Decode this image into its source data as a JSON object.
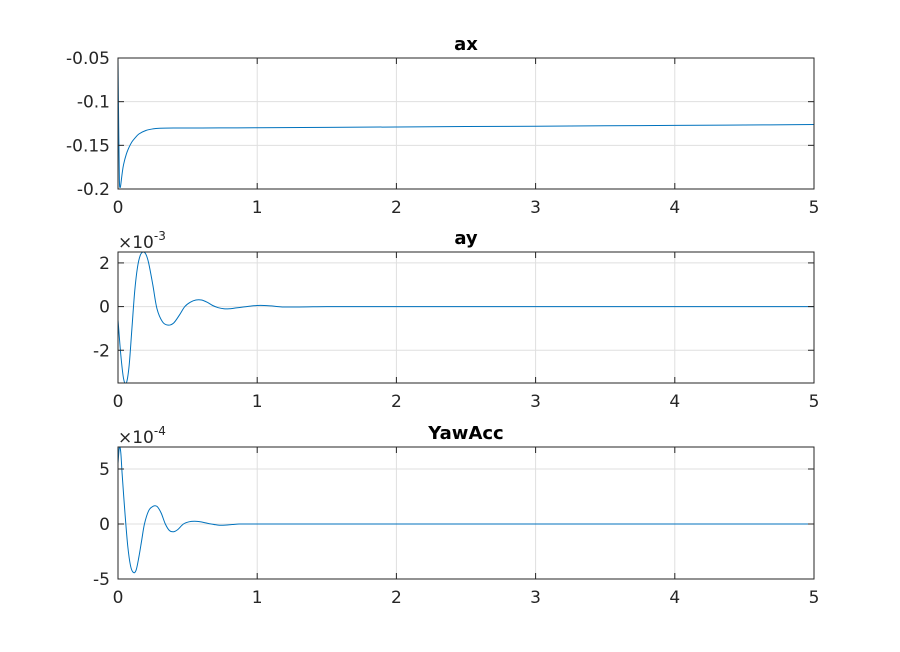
{
  "colors": {
    "line": "#0072BD",
    "grid": "#dfdfdf",
    "axis": "#262626"
  },
  "chart_data": [
    {
      "type": "line",
      "title": "ax",
      "xlim": [
        0,
        5
      ],
      "ylim": [
        -0.2,
        -0.05
      ],
      "xticks": [
        0,
        1,
        2,
        3,
        4,
        5
      ],
      "xtick_labels": [
        "0",
        "1",
        "2",
        "3",
        "4",
        "5"
      ],
      "yticks": [
        -0.2,
        -0.15,
        -0.1,
        -0.05
      ],
      "ytick_labels": [
        "-0.2",
        "-0.15",
        "-0.1",
        "-0.05"
      ],
      "exponent": null,
      "grid": true,
      "series": [
        {
          "x": [
            0,
            0.005,
            0.01,
            0.015,
            0.02,
            0.03,
            0.04,
            0.06,
            0.08,
            0.1,
            0.12,
            0.15,
            0.2,
            0.25,
            0.3,
            0.4,
            0.5,
            0.6,
            0.8,
            1.0,
            1.5,
            2.0,
            2.5,
            3.0,
            3.5,
            4.0,
            4.5,
            5.0
          ],
          "y": [
            -0.05,
            -0.13,
            -0.19,
            -0.198,
            -0.195,
            -0.182,
            -0.172,
            -0.16,
            -0.152,
            -0.146,
            -0.142,
            -0.137,
            -0.133,
            -0.1312,
            -0.1305,
            -0.1302,
            -0.1302,
            -0.1301,
            -0.13,
            -0.1298,
            -0.1294,
            -0.129,
            -0.1285,
            -0.1281,
            -0.1276,
            -0.1272,
            -0.1267,
            -0.1262
          ]
        }
      ]
    },
    {
      "type": "line",
      "title": "ay",
      "xlim": [
        0,
        5
      ],
      "ylim": [
        -3.5,
        2.5
      ],
      "xticks": [
        0,
        1,
        2,
        3,
        4,
        5
      ],
      "xtick_labels": [
        "0",
        "1",
        "2",
        "3",
        "4",
        "5"
      ],
      "yticks": [
        -2,
        0,
        2
      ],
      "ytick_labels": [
        "-2",
        "0",
        "2"
      ],
      "exponent": {
        "base": "×10",
        "power": "-3"
      },
      "grid": true,
      "series": [
        {
          "x": [
            0,
            0.02,
            0.04,
            0.06,
            0.08,
            0.1,
            0.12,
            0.14,
            0.16,
            0.18,
            0.2,
            0.22,
            0.25,
            0.28,
            0.32,
            0.36,
            0.4,
            0.44,
            0.48,
            0.52,
            0.56,
            0.6,
            0.64,
            0.68,
            0.72,
            0.76,
            0.8,
            0.85,
            0.9,
            0.95,
            1.0,
            1.05,
            1.1,
            1.15,
            1.2,
            1.3,
            1.4,
            1.5,
            2.0,
            3.0,
            4.0,
            5.0
          ],
          "y": [
            -0.6,
            -2.2,
            -3.3,
            -3.5,
            -2.7,
            -1.0,
            0.7,
            1.8,
            2.35,
            2.5,
            2.4,
            2.0,
            1.0,
            -0.1,
            -0.7,
            -0.85,
            -0.75,
            -0.4,
            0.0,
            0.2,
            0.3,
            0.3,
            0.2,
            0.05,
            -0.05,
            -0.1,
            -0.1,
            -0.06,
            -0.02,
            0.02,
            0.05,
            0.05,
            0.03,
            0.0,
            -0.02,
            -0.02,
            -0.01,
            0.0,
            0.0,
            0.0,
            0.0,
            0.0
          ]
        }
      ]
    },
    {
      "type": "line",
      "title": "YawAcc",
      "xlim": [
        0,
        5
      ],
      "ylim": [
        -5,
        7
      ],
      "xticks": [
        0,
        1,
        2,
        3,
        4,
        5
      ],
      "xtick_labels": [
        "0",
        "1",
        "2",
        "3",
        "4",
        "5"
      ],
      "yticks": [
        -5,
        0,
        5
      ],
      "ytick_labels": [
        "-5",
        "0",
        "5"
      ],
      "exponent": {
        "base": "×10",
        "power": "-4"
      },
      "grid": true,
      "series": [
        {
          "x": [
            0,
            0.01,
            0.02,
            0.03,
            0.05,
            0.07,
            0.09,
            0.11,
            0.13,
            0.15,
            0.17,
            0.19,
            0.22,
            0.25,
            0.28,
            0.31,
            0.34,
            0.37,
            0.4,
            0.43,
            0.47,
            0.51,
            0.55,
            0.59,
            0.63,
            0.67,
            0.72,
            0.77,
            0.82,
            0.87,
            0.92,
            1.0,
            1.1,
            1.2,
            1.4,
            1.6,
            2.0,
            3.0,
            4.0,
            5.0
          ],
          "y": [
            5.5,
            7.0,
            6.5,
            4.5,
            1.0,
            -2.0,
            -3.8,
            -4.4,
            -4.2,
            -3.0,
            -1.5,
            0.0,
            1.2,
            1.6,
            1.6,
            1.0,
            0.0,
            -0.6,
            -0.7,
            -0.5,
            0.0,
            0.2,
            0.25,
            0.2,
            0.1,
            0.0,
            -0.1,
            -0.1,
            -0.05,
            0.0,
            0.0,
            0.0,
            0.0,
            0.0,
            0.0,
            0.0,
            0.0,
            0.0,
            0.0,
            0.0
          ]
        }
      ]
    }
  ]
}
